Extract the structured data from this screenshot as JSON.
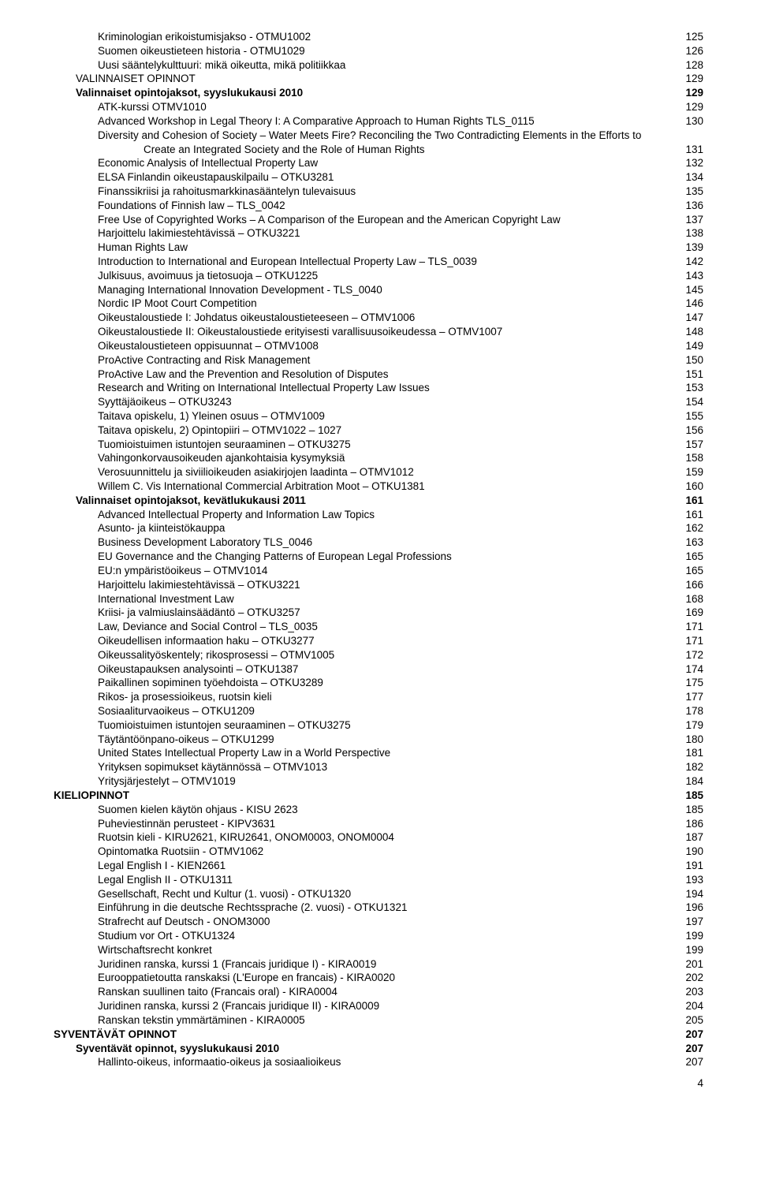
{
  "page_number": "4",
  "entries": [
    {
      "indent": 2,
      "bold": false,
      "label": "Kriminologian erikoistumisjakso - OTMU1002",
      "page": "125"
    },
    {
      "indent": 2,
      "bold": false,
      "label": "Suomen oikeustieteen historia - OTMU1029",
      "page": "126"
    },
    {
      "indent": 2,
      "bold": false,
      "label": "Uusi sääntelykulttuuri: mikä oikeutta, mikä politiikkaa",
      "page": "128"
    },
    {
      "indent": 1,
      "bold": false,
      "label": "VALINNAISET OPINNOT",
      "page": "129"
    },
    {
      "indent": 1,
      "bold": true,
      "label": "Valinnaiset opintojaksot, syyslukukausi 2010",
      "page": "129"
    },
    {
      "indent": 2,
      "bold": false,
      "label": "ATK-kurssi OTMV1010",
      "page": "129"
    },
    {
      "indent": 2,
      "bold": false,
      "label": "Advanced Workshop in Legal Theory I: A Comparative Approach to Human Rights TLS_0115",
      "page": "130"
    },
    {
      "indent": 2,
      "bold": false,
      "label": "Diversity and Cohesion of Society – Water Meets Fire? Reconciling the Two Contradicting Elements in the Efforts to",
      "page": "",
      "nodots": true
    },
    {
      "indent": 3,
      "bold": false,
      "label": "Create an Integrated Society and the Role of Human Rights",
      "page": "131"
    },
    {
      "indent": 2,
      "bold": false,
      "label": "Economic Analysis of Intellectual Property Law",
      "page": "132"
    },
    {
      "indent": 2,
      "bold": false,
      "label": "ELSA Finlandin oikeustapauskilpailu – OTKU3281",
      "page": "134"
    },
    {
      "indent": 2,
      "bold": false,
      "label": "Finanssikriisi ja rahoitusmarkkinasääntelyn tulevaisuus",
      "page": "135"
    },
    {
      "indent": 2,
      "bold": false,
      "label": "Foundations of Finnish law – TLS_0042",
      "page": "136"
    },
    {
      "indent": 2,
      "bold": false,
      "label": "Free Use of Copyrighted Works – A Comparison of the European and the American Copyright Law",
      "page": "137"
    },
    {
      "indent": 2,
      "bold": false,
      "label": "Harjoittelu lakimiestehtävissä – OTKU3221",
      "page": "138"
    },
    {
      "indent": 2,
      "bold": false,
      "label": "Human Rights Law",
      "page": "139"
    },
    {
      "indent": 2,
      "bold": false,
      "label": "Introduction to International and European Intellectual Property Law – TLS_0039",
      "page": "142"
    },
    {
      "indent": 2,
      "bold": false,
      "label": "Julkisuus, avoimuus ja tietosuoja – OTKU1225",
      "page": "143"
    },
    {
      "indent": 2,
      "bold": false,
      "label": "Managing International Innovation Development - TLS_0040",
      "page": "145"
    },
    {
      "indent": 2,
      "bold": false,
      "label": "Nordic IP Moot Court Competition",
      "page": "146"
    },
    {
      "indent": 2,
      "bold": false,
      "label": "Oikeustaloustiede I: Johdatus oikeustaloustieteeseen – OTMV1006",
      "page": "147"
    },
    {
      "indent": 2,
      "bold": false,
      "label": "Oikeustaloustiede II: Oikeustaloustiede erityisesti varallisuusoikeudessa – OTMV1007",
      "page": "148"
    },
    {
      "indent": 2,
      "bold": false,
      "label": "Oikeustaloustieteen oppisuunnat – OTMV1008",
      "page": "149"
    },
    {
      "indent": 2,
      "bold": false,
      "label": "ProActive Contracting and Risk Management",
      "page": "150"
    },
    {
      "indent": 2,
      "bold": false,
      "label": "ProActive Law and the Prevention and Resolution of Disputes",
      "page": "151"
    },
    {
      "indent": 2,
      "bold": false,
      "label": "Research and Writing on International Intellectual Property Law Issues",
      "page": "153"
    },
    {
      "indent": 2,
      "bold": false,
      "label": "Syyttäjäoikeus – OTKU3243",
      "page": "154"
    },
    {
      "indent": 2,
      "bold": false,
      "label": "Taitava opiskelu, 1) Yleinen osuus – OTMV1009",
      "page": "155"
    },
    {
      "indent": 2,
      "bold": false,
      "label": "Taitava opiskelu, 2) Opintopiiri – OTMV1022 – 1027",
      "page": "156"
    },
    {
      "indent": 2,
      "bold": false,
      "label": "Tuomioistuimen istuntojen seuraaminen – OTKU3275",
      "page": "157"
    },
    {
      "indent": 2,
      "bold": false,
      "label": "Vahingonkorvausoikeuden ajankohtaisia kysymyksiä",
      "page": "158"
    },
    {
      "indent": 2,
      "bold": false,
      "label": "Verosuunnittelu ja siviilioikeuden asiakirjojen laadinta – OTMV1012",
      "page": "159"
    },
    {
      "indent": 2,
      "bold": false,
      "label": "Willem C. Vis International Commercial Arbitration Moot – OTKU1381",
      "page": "160"
    },
    {
      "indent": 1,
      "bold": true,
      "label": "Valinnaiset opintojaksot, kevätlukukausi 2011",
      "page": "161"
    },
    {
      "indent": 2,
      "bold": false,
      "label": "Advanced Intellectual Property and Information Law Topics",
      "page": "161"
    },
    {
      "indent": 2,
      "bold": false,
      "label": "Asunto- ja kiinteistökauppa",
      "page": "162"
    },
    {
      "indent": 2,
      "bold": false,
      "label": "Business Development Laboratory TLS_0046",
      "page": "163"
    },
    {
      "indent": 2,
      "bold": false,
      "label": "EU Governance and the Changing Patterns of European Legal Professions",
      "page": "165"
    },
    {
      "indent": 2,
      "bold": false,
      "label": "EU:n ympäristöoikeus – OTMV1014",
      "page": "165"
    },
    {
      "indent": 2,
      "bold": false,
      "label": "Harjoittelu lakimiestehtävissä – OTKU3221",
      "page": "166"
    },
    {
      "indent": 2,
      "bold": false,
      "label": "International Investment Law",
      "page": "168"
    },
    {
      "indent": 2,
      "bold": false,
      "label": "Kriisi- ja valmiuslainsäädäntö – OTKU3257",
      "page": "169"
    },
    {
      "indent": 2,
      "bold": false,
      "label": "Law, Deviance and Social Control – TLS_0035",
      "page": "171"
    },
    {
      "indent": 2,
      "bold": false,
      "label": "Oikeudellisen informaation haku – OTKU3277",
      "page": "171"
    },
    {
      "indent": 2,
      "bold": false,
      "label": "Oikeussalityöskentely; rikosprosessi – OTMV1005",
      "page": "172"
    },
    {
      "indent": 2,
      "bold": false,
      "label": "Oikeustapauksen analysointi – OTKU1387",
      "page": "174"
    },
    {
      "indent": 2,
      "bold": false,
      "label": "Paikallinen sopiminen työehdoista – OTKU3289",
      "page": "175"
    },
    {
      "indent": 2,
      "bold": false,
      "label": "Rikos- ja prosessioikeus, ruotsin kieli",
      "page": "177"
    },
    {
      "indent": 2,
      "bold": false,
      "label": "Sosiaaliturvaoikeus – OTKU1209",
      "page": "178"
    },
    {
      "indent": 2,
      "bold": false,
      "label": "Tuomioistuimen istuntojen seuraaminen – OTKU3275",
      "page": "179"
    },
    {
      "indent": 2,
      "bold": false,
      "label": "Täytäntöönpano-oikeus – OTKU1299",
      "page": "180"
    },
    {
      "indent": 2,
      "bold": false,
      "label": "United States Intellectual Property Law in a World Perspective",
      "page": "181"
    },
    {
      "indent": 2,
      "bold": false,
      "label": "Yrityksen sopimukset käytännössä – OTMV1013",
      "page": "182"
    },
    {
      "indent": 2,
      "bold": false,
      "label": "Yritysjärjestelyt – OTMV1019",
      "page": "184"
    },
    {
      "indent": 0,
      "bold": true,
      "label": "KIELIOPINNOT",
      "page": "185"
    },
    {
      "indent": 2,
      "bold": false,
      "label": "Suomen kielen käytön ohjaus - KISU 2623",
      "page": "185"
    },
    {
      "indent": 2,
      "bold": false,
      "label": "Puheviestinnän perusteet - KIPV3631",
      "page": "186"
    },
    {
      "indent": 2,
      "bold": false,
      "label": "Ruotsin kieli - KIRU2621, KIRU2641, ONOM0003, ONOM0004",
      "page": "187"
    },
    {
      "indent": 2,
      "bold": false,
      "label": "Opintomatka Ruotsiin - OTMV1062",
      "page": "190"
    },
    {
      "indent": 2,
      "bold": false,
      "label": "Legal English I - KIEN2661",
      "page": "191"
    },
    {
      "indent": 2,
      "bold": false,
      "label": "Legal English II - OTKU1311",
      "page": "193"
    },
    {
      "indent": 2,
      "bold": false,
      "label": "Gesellschaft, Recht und Kultur (1. vuosi) - OTKU1320",
      "page": "194"
    },
    {
      "indent": 2,
      "bold": false,
      "label": "Einführung in die deutsche Rechtssprache (2. vuosi) - OTKU1321",
      "page": "196"
    },
    {
      "indent": 2,
      "bold": false,
      "label": "Strafrecht auf Deutsch - ONOM3000",
      "page": "197"
    },
    {
      "indent": 2,
      "bold": false,
      "label": "Studium vor Ort - OTKU1324",
      "page": "199"
    },
    {
      "indent": 2,
      "bold": false,
      "label": "Wirtschaftsrecht konkret",
      "page": "199"
    },
    {
      "indent": 2,
      "bold": false,
      "label": "Juridinen ranska, kurssi 1 (Francais juridique I) - KIRA0019",
      "page": "201"
    },
    {
      "indent": 2,
      "bold": false,
      "label": "Eurooppatietoutta ranskaksi (L'Europe en francais) - KIRA0020",
      "page": "202"
    },
    {
      "indent": 2,
      "bold": false,
      "label": "Ranskan suullinen taito (Francais oral) - KIRA0004",
      "page": "203"
    },
    {
      "indent": 2,
      "bold": false,
      "label": "Juridinen ranska, kurssi 2 (Francais juridique II) - KIRA0009",
      "page": "204"
    },
    {
      "indent": 2,
      "bold": false,
      "label": "Ranskan tekstin ymmärtäminen - KIRA0005",
      "page": "205"
    },
    {
      "indent": 0,
      "bold": true,
      "label": "SYVENTÄVÄT OPINNOT",
      "page": "207"
    },
    {
      "indent": 1,
      "bold": true,
      "label": "Syventävät opinnot, syyslukukausi 2010",
      "page": "207"
    },
    {
      "indent": 2,
      "bold": false,
      "label": "Hallinto-oikeus, informaatio-oikeus ja sosiaalioikeus",
      "page": "207"
    }
  ]
}
